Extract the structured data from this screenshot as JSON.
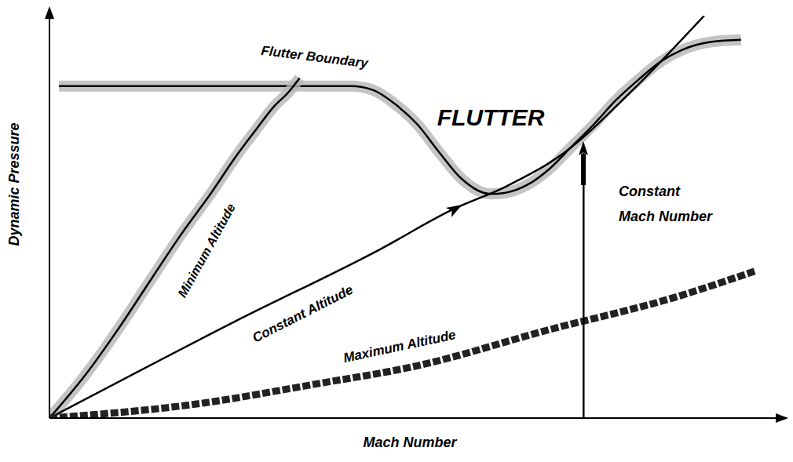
{
  "chart_data": {
    "type": "line",
    "x_label": "Mach Number",
    "y_label": "Dynamic Pressure",
    "xlim": [
      0,
      100
    ],
    "ylim": [
      0,
      100
    ],
    "xticks": [],
    "yticks": [],
    "tick_labels": false,
    "grid": false,
    "annotations": [
      "FLUTTER"
    ],
    "series": [
      {
        "name": "Flutter Boundary",
        "color": "#000000",
        "line_style": "solid",
        "x": [
          1.3,
          20,
          41,
          44,
          47,
          50,
          53,
          56,
          59,
          60,
          62,
          65,
          68,
          71,
          74,
          77,
          80,
          83,
          86,
          90,
          94
        ],
        "values": [
          82.5,
          82.5,
          82.5,
          81.5,
          78,
          73,
          66,
          59.5,
          56,
          55.7,
          56,
          58,
          62,
          67.5,
          73,
          79,
          84,
          88.5,
          91.5,
          93.5,
          94
        ]
      },
      {
        "name": "Minimum Altitude",
        "color": "#000000",
        "line_style": "solid",
        "x": [
          0,
          5,
          9.3,
          14,
          17.8,
          22,
          25.3,
          28,
          30.6,
          32.5,
          34
        ],
        "values": [
          0,
          11,
          22,
          35,
          45.4,
          56,
          64.9,
          71.5,
          77.6,
          81,
          84.5
        ]
      },
      {
        "name": "Constant Altitude",
        "color": "#000000",
        "line_style": "solid",
        "x": [
          0,
          25,
          45,
          55,
          62,
          70,
          79,
          89
        ],
        "values": [
          0,
          23.8,
          42,
          52,
          57.5,
          66,
          81,
          100
        ]
      },
      {
        "name": "Maximum Altitude",
        "color": "#222222",
        "line_style": "dashed",
        "x": [
          0,
          20,
          36,
          50,
          68,
          85,
          96
        ],
        "values": [
          0,
          3.5,
          8.4,
          13,
          22,
          30,
          36.6
        ]
      },
      {
        "name": "Constant Mach Number",
        "color": "#000000",
        "line_style": "solid",
        "x": [
          72.6,
          72.6
        ],
        "values": [
          0,
          66
        ]
      }
    ]
  }
}
